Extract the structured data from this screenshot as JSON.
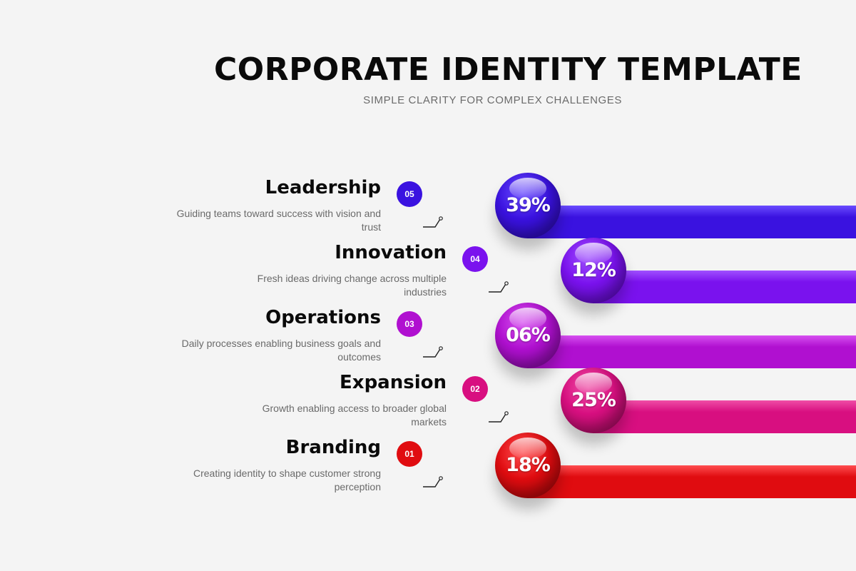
{
  "header": {
    "title": "CORPORATE IDENTITY TEMPLATE",
    "subtitle": "SIMPLE CLARITY FOR COMPLEX CHALLENGES"
  },
  "items": [
    {
      "heading": "Leadership",
      "desc": "Guiding teams toward success with vision and trust",
      "num": "05",
      "pct": "39%",
      "color": "#3a12e0",
      "dark": "#2a0aa8",
      "light": "#6a4cff"
    },
    {
      "heading": "Innovation",
      "desc": "Fresh ideas driving change across multiple industries",
      "num": "04",
      "pct": "12%",
      "color": "#7a12ee",
      "dark": "#5508b5",
      "light": "#a050ff"
    },
    {
      "heading": "Operations",
      "desc": "Daily processes enabling business goals and outcomes",
      "num": "03",
      "pct": "06%",
      "color": "#b010d0",
      "dark": "#7c0898",
      "light": "#d650f0"
    },
    {
      "heading": "Expansion",
      "desc": "Growth enabling access to broader global markets",
      "num": "02",
      "pct": "25%",
      "color": "#d80f80",
      "dark": "#9a0a58",
      "light": "#ef4ea6"
    },
    {
      "heading": "Branding",
      "desc": "Creating identity to shape customer strong perception",
      "num": "01",
      "pct": "18%",
      "color": "#e00c10",
      "dark": "#9e0508",
      "light": "#ff4d50"
    }
  ]
}
